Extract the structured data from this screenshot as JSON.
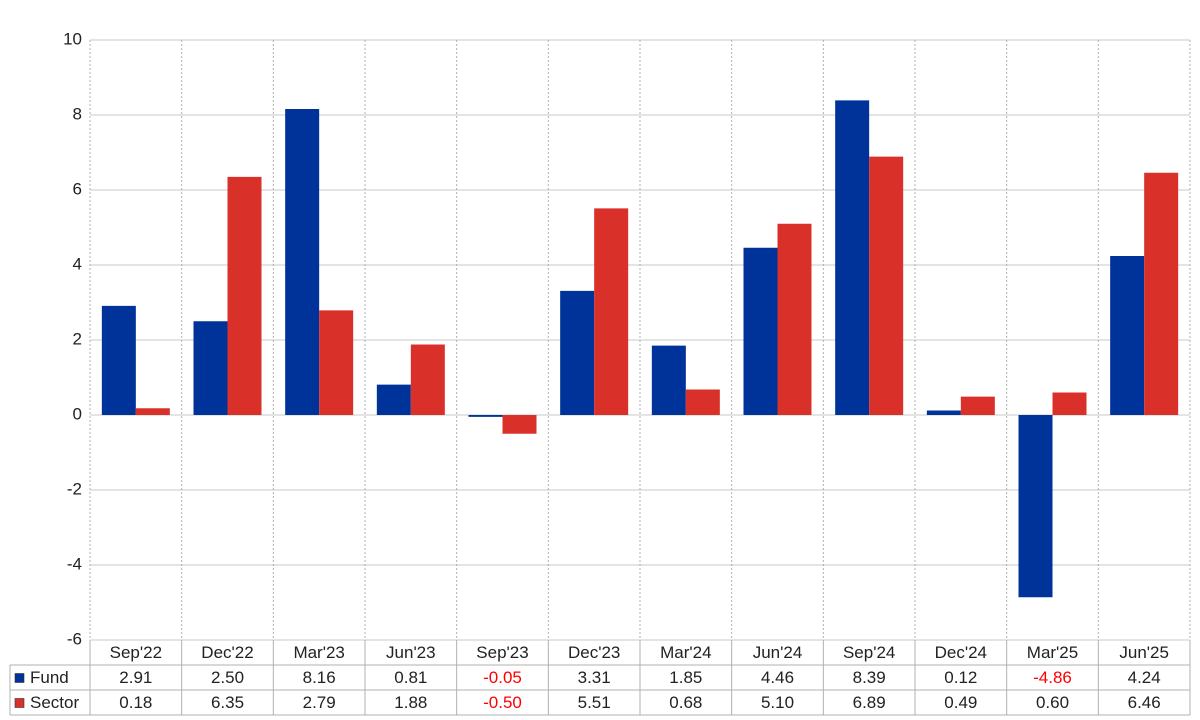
{
  "chart_data": {
    "type": "bar",
    "categories": [
      "Sep'22",
      "Dec'22",
      "Mar'23",
      "Jun'23",
      "Sep'23",
      "Dec'23",
      "Mar'24",
      "Jun'24",
      "Sep'24",
      "Dec'24",
      "Mar'25",
      "Jun'25"
    ],
    "series": [
      {
        "name": "Fund",
        "color": "#003399",
        "values": [
          2.91,
          2.5,
          8.16,
          0.81,
          -0.05,
          3.31,
          1.85,
          4.46,
          8.39,
          0.12,
          -4.86,
          4.24
        ],
        "value_labels": [
          "2.91",
          "2.50",
          "8.16",
          "0.81",
          "-0.05",
          "3.31",
          "1.85",
          "4.46",
          "8.39",
          "0.12",
          "-4.86",
          "4.24"
        ]
      },
      {
        "name": "Sector",
        "color": "#d9302a",
        "values": [
          0.18,
          6.35,
          2.79,
          1.88,
          -0.5,
          5.51,
          0.68,
          5.1,
          6.89,
          0.49,
          0.6,
          6.46
        ],
        "value_labels": [
          "0.18",
          "6.35",
          "2.79",
          "1.88",
          "-0.50",
          "5.51",
          "0.68",
          "5.10",
          "6.89",
          "0.49",
          "0.60",
          "6.46"
        ]
      }
    ],
    "ylim": [
      -6,
      10
    ],
    "yticks": [
      -6,
      -4,
      -2,
      0,
      2,
      4,
      6,
      8,
      10
    ],
    "grid": true,
    "negative_label_color": "#ff0000"
  }
}
